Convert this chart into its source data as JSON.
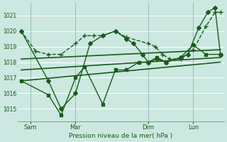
{
  "background_color": "#cce8e0",
  "grid_color": "#b0d8d0",
  "line_color": "#1a5c1a",
  "xlabel": "Pression niveau de la mer( hPa )",
  "ylim": [
    1014.2,
    1021.8
  ],
  "yticks": [
    1015,
    1016,
    1017,
    1018,
    1019,
    1020,
    1021
  ],
  "x_ticks_labels": [
    "Sam",
    "Mar",
    "Dim",
    "Lun"
  ],
  "x_ticks_pos": [
    0.5,
    3.0,
    7.0,
    9.5
  ],
  "x_vlines": [
    0.5,
    3.0,
    7.0,
    9.5
  ],
  "xlim": [
    -0.2,
    11.2
  ],
  "series": [
    {
      "x": [
        0.0,
        0.8,
        1.5,
        2.2,
        3.0,
        3.5,
        4.0,
        4.5,
        5.2,
        5.8,
        7.0,
        7.4,
        7.8,
        8.2,
        8.8,
        9.5,
        10.2,
        10.7,
        11.0
      ],
      "y": [
        1020.0,
        1018.7,
        1018.5,
        1018.5,
        1019.2,
        1019.7,
        1019.7,
        1019.7,
        1020.0,
        1019.6,
        1019.2,
        1019.0,
        1018.5,
        1018.2,
        1018.2,
        1018.8,
        1020.3,
        1021.2,
        1021.2
      ],
      "marker": "+",
      "markersize": 4,
      "linewidth": 1.0,
      "linestyle": "--"
    },
    {
      "x": [
        0.0,
        1.5,
        2.2,
        3.0,
        3.8,
        4.5,
        5.2,
        5.8,
        6.2,
        6.7,
        7.0,
        7.5,
        8.0,
        8.8,
        9.2,
        9.8,
        10.3,
        10.7,
        11.0
      ],
      "y": [
        1020.0,
        1016.8,
        1015.0,
        1016.0,
        1019.2,
        1019.7,
        1020.0,
        1019.5,
        1019.2,
        1018.5,
        1018.0,
        1018.2,
        1018.0,
        1018.3,
        1018.5,
        1020.2,
        1021.2,
        1021.5,
        1018.5
      ],
      "marker": "D",
      "markersize": 3,
      "linewidth": 1.0,
      "linestyle": "-"
    },
    {
      "x": [
        0.0,
        1.5,
        2.2,
        3.0,
        3.5,
        4.5,
        5.2,
        5.8,
        6.5,
        7.0,
        7.5,
        8.0,
        8.8,
        9.5,
        10.2,
        11.0
      ],
      "y": [
        1016.8,
        1015.9,
        1014.6,
        1017.0,
        1017.7,
        1015.3,
        1017.5,
        1017.5,
        1018.0,
        1018.0,
        1018.3,
        1018.0,
        1018.3,
        1019.1,
        1018.5,
        1018.5
      ],
      "marker": "s",
      "markersize": 3,
      "linewidth": 1.0,
      "linestyle": "-"
    },
    {
      "x": [
        0.0,
        11.0
      ],
      "y": [
        1018.2,
        1018.8
      ],
      "marker": "None",
      "markersize": 0,
      "linewidth": 1.2,
      "linestyle": "-"
    },
    {
      "x": [
        0.0,
        11.0
      ],
      "y": [
        1017.5,
        1018.3
      ],
      "marker": "None",
      "markersize": 0,
      "linewidth": 1.2,
      "linestyle": "-"
    },
    {
      "x": [
        0.0,
        11.0
      ],
      "y": [
        1016.8,
        1018.0
      ],
      "marker": "None",
      "markersize": 0,
      "linewidth": 1.2,
      "linestyle": "-"
    }
  ]
}
